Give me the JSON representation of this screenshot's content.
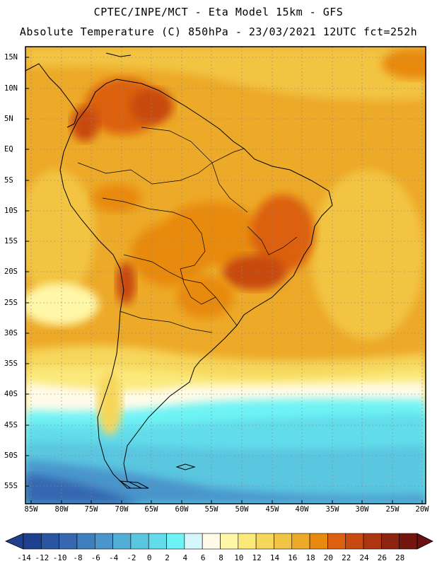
{
  "header": {
    "line1": "CPTEC/INPE/MCT -  Eta Model 15km - GFS",
    "line2": "Absolute Temperature (C) 850hPa - 23/03/2021 12UTC fct=252h"
  },
  "axes": {
    "lat_labels": [
      "15N",
      "10N",
      "5N",
      "EQ",
      "5S",
      "10S",
      "15S",
      "20S",
      "25S",
      "30S",
      "35S",
      "40S",
      "45S",
      "50S",
      "55S"
    ],
    "lon_labels": [
      "85W",
      "80W",
      "75W",
      "70W",
      "65W",
      "60W",
      "55W",
      "50W",
      "45W",
      "40W",
      "35W",
      "30W",
      "25W",
      "20W"
    ]
  },
  "colorbar": {
    "labels": [
      "-14",
      "-12",
      "-10",
      "-8",
      "-6",
      "-4",
      "-2",
      "0",
      "2",
      "4",
      "6",
      "8",
      "10",
      "12",
      "14",
      "16",
      "18",
      "20",
      "22",
      "24",
      "26",
      "28"
    ],
    "colors": [
      "#1f3f8f",
      "#2a55a0",
      "#3568b0",
      "#3f7fc0",
      "#4a95cc",
      "#52aed6",
      "#5ac6e0",
      "#62dcea",
      "#6ef3f5",
      "#d4f7fb",
      "#fffbe8",
      "#fff7a8",
      "#fbe97a",
      "#f6d75c",
      "#f2c443",
      "#eda928",
      "#e88a10",
      "#dc6010",
      "#c84a10",
      "#ad3510",
      "#8e2410",
      "#74160f"
    ]
  },
  "legend_tag": "temperature-colorbar"
}
